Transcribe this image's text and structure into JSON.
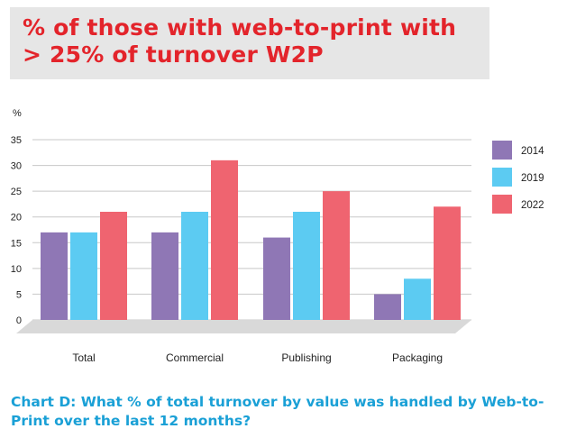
{
  "title": "% of those with web-to-print with > 25% of turnover W2P",
  "caption": "Chart D: What % of total turnover by value was handled by Web-to-Print over the last 12 months?",
  "chart_data": {
    "type": "bar",
    "title": "% of those with web-to-print with > 25% of turnover W2P",
    "ylabel": "%",
    "xlabel": "",
    "ylim": [
      0,
      35
    ],
    "yticks": [
      0,
      5,
      10,
      15,
      20,
      25,
      30,
      35
    ],
    "grid": true,
    "legend_position": "right",
    "categories": [
      "Total",
      "Commercial",
      "Publishing",
      "Packaging"
    ],
    "series": [
      {
        "name": "2014",
        "color": "#8f77b5",
        "values": [
          17,
          17,
          16,
          5
        ]
      },
      {
        "name": "2019",
        "color": "#5ccbf2",
        "values": [
          17,
          21,
          21,
          8
        ]
      },
      {
        "name": "2022",
        "color": "#ef6470",
        "values": [
          21,
          31,
          25,
          22
        ]
      }
    ]
  }
}
